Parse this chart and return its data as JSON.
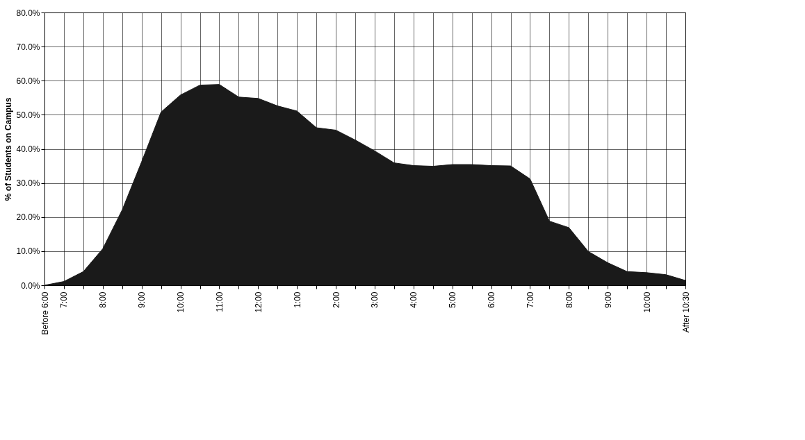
{
  "chart_data": {
    "type": "area",
    "ylabel": "% of Students on Campus",
    "categories": [
      "Before 6:00",
      "7:00",
      null,
      "8:00",
      null,
      "9:00",
      null,
      "10:00",
      null,
      "11:00",
      null,
      "12:00",
      null,
      "1:00",
      null,
      "2:00",
      null,
      "3:00",
      null,
      "4:00",
      null,
      "5:00",
      null,
      "6:00",
      null,
      "7:00",
      null,
      "8:00",
      null,
      "9:00",
      null,
      "10:00",
      null,
      "After 10:30"
    ],
    "series": [
      {
        "color": "#1a1a1a",
        "values": [
          0,
          1.1,
          4.0,
          10.7,
          22.1,
          36.2,
          50.8,
          55.8,
          58.7,
          58.9,
          55.2,
          54.8,
          52.6,
          51.1,
          46.2,
          45.5,
          42.6,
          39.4,
          35.9,
          35.1,
          34.9,
          35.4,
          35.4,
          35.1,
          35.0,
          31.2,
          18.8,
          16.9,
          9.9,
          6.6,
          4.0,
          3.7,
          3.1,
          1.4
        ]
      }
    ],
    "ylim": [
      0,
      80
    ],
    "yticks": [
      {
        "value": 0,
        "label": "0.0%"
      },
      {
        "value": 10,
        "label": "10.0%"
      },
      {
        "value": 20,
        "label": "20.0%"
      },
      {
        "value": 30,
        "label": "30.0%"
      },
      {
        "value": 40,
        "label": "40.0%"
      },
      {
        "value": 50,
        "label": "50.0%"
      },
      {
        "value": 60,
        "label": "60.0%"
      },
      {
        "value": 70,
        "label": "70.0%"
      },
      {
        "value": 80,
        "label": "80.0%"
      }
    ],
    "grid": true
  }
}
